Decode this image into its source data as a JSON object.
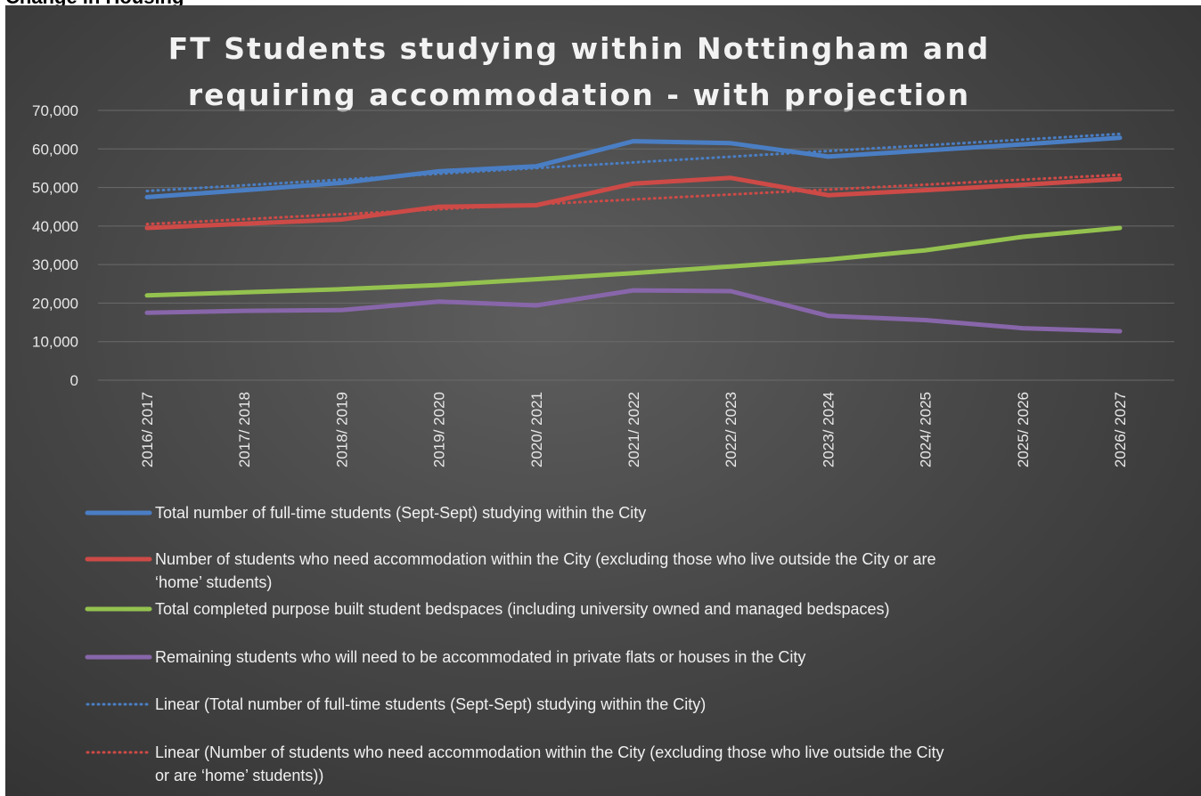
{
  "cut_heading": "Change in Housing",
  "chart_data": {
    "type": "line",
    "title_lines": [
      "FT Students studying within Nottingham and",
      "requiring accommodation - with projection"
    ],
    "categories": [
      "2016/ 2017",
      "2017/ 2018",
      "2018/ 2019",
      "2019/ 2020",
      "2020/ 2021",
      "2021/ 2022",
      "2022/ 2023",
      "2023/ 2024",
      "2024/ 2025",
      "2025/ 2026",
      "2026/ 2027"
    ],
    "ylim": [
      0,
      70000
    ],
    "yticks": [
      0,
      10000,
      20000,
      30000,
      40000,
      50000,
      60000,
      70000
    ],
    "ytick_labels": [
      "0",
      "10,000",
      "20,000",
      "30,000",
      "40,000",
      "50,000",
      "60,000",
      "70,000"
    ],
    "grid": true,
    "legend_position": "bottom",
    "series": [
      {
        "name": "Total number of full-time students (Sept-Sept) studying within the City",
        "color": "#4a7ec4",
        "style": "solid",
        "values": [
          47500,
          49300,
          51200,
          54200,
          55500,
          62000,
          61500,
          58000,
          59600,
          61200,
          62900
        ]
      },
      {
        "name": "Number of students who need accommodation within the City (excluding those who live outside the City or are ‘home’ students)",
        "color": "#cd4a47",
        "style": "solid",
        "values": [
          39500,
          40600,
          41700,
          45000,
          45400,
          51000,
          52500,
          48000,
          49300,
          50700,
          52200
        ]
      },
      {
        "name": "Total completed purpose built student bedspaces (including university owned and managed bedspaces)",
        "color": "#94c24f",
        "style": "solid",
        "values": [
          22000,
          22800,
          23600,
          24700,
          26200,
          27800,
          29500,
          31300,
          33700,
          37200,
          39500
        ]
      },
      {
        "name": "Remaining students who will need to be accommodated in private flats or houses in the City",
        "color": "#8866aa",
        "style": "solid",
        "values": [
          17500,
          18000,
          18200,
          20400,
          19400,
          23300,
          23100,
          16700,
          15600,
          13500,
          12700
        ]
      },
      {
        "name": "Linear (Total number of full-time students (Sept-Sept) studying within the City)",
        "color": "#4a7ec4",
        "style": "dotted",
        "values": [
          49100,
          50580,
          52060,
          53540,
          55020,
          56500,
          57980,
          59460,
          60940,
          62420,
          63900
        ]
      },
      {
        "name": "Linear (Number of students who need accommodation within the City (excluding those who live outside the City or are ‘home’ students))",
        "color": "#cd4a47",
        "style": "dotted",
        "values": [
          40500,
          41780,
          43060,
          44340,
          45620,
          46900,
          48180,
          49460,
          50740,
          52020,
          53300
        ]
      }
    ],
    "legend_lines": [
      [
        "Total number of full-time students (Sept-Sept) studying within the City"
      ],
      [
        "Number of students who need accommodation within the City (excluding those who live outside the City or are",
        "‘home’ students)"
      ],
      [
        "Total completed purpose built student bedspaces (including university owned and managed bedspaces)"
      ],
      [
        "Remaining students who will need to be accommodated in private flats or houses in the City"
      ],
      [
        "Linear (Total number of full-time students (Sept-Sept) studying within the City)"
      ],
      [
        "Linear (Number of students who need accommodation within the City (excluding those who live outside the City",
        "or are ‘home’ students))"
      ]
    ]
  }
}
